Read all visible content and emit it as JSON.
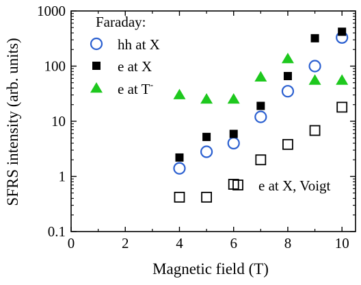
{
  "chart_data": {
    "type": "scatter",
    "xlabel": "Magnetic field (T)",
    "ylabel": "SFRS intensity (arb. units)",
    "xlim": [
      0,
      10.5
    ],
    "ylim": [
      0.1,
      1000
    ],
    "yscale": "log",
    "x_ticks": [
      0,
      2,
      4,
      6,
      8,
      10
    ],
    "x_tick_labels": [
      "0",
      "2",
      "4",
      "6",
      "8",
      "10"
    ],
    "y_ticks": [
      0.1,
      1,
      10,
      100,
      1000
    ],
    "y_tick_labels": [
      "0.1",
      "1",
      "10",
      "100",
      "1000"
    ],
    "grid": false,
    "legend": {
      "title": "Faraday:",
      "placement": "top-left"
    },
    "series": [
      {
        "name": "hh at X",
        "marker": "open-circle",
        "color": "#2a5fd0",
        "x": [
          4,
          5,
          6,
          7,
          8,
          9,
          10
        ],
        "y": [
          1.4,
          2.8,
          4.0,
          12,
          35,
          100,
          330
        ]
      },
      {
        "name": "e at X",
        "marker": "filled-square",
        "color": "#000000",
        "x": [
          4,
          5,
          6,
          7,
          8,
          9,
          10
        ],
        "y": [
          2.2,
          5.2,
          5.9,
          19,
          66,
          320,
          420
        ]
      },
      {
        "name": "e at T",
        "name_superscript": "-",
        "marker": "filled-triangle",
        "color": "#1ec81e",
        "x": [
          4,
          5,
          6,
          7,
          8,
          9,
          10
        ],
        "y": [
          30,
          25,
          25,
          63,
          135,
          55,
          55
        ]
      },
      {
        "name": "e at X, Voigt",
        "marker": "open-square",
        "color": "#000000",
        "x": [
          4,
          5,
          6,
          7,
          8,
          9,
          10
        ],
        "y": [
          0.42,
          0.42,
          0.72,
          2.0,
          3.8,
          6.8,
          18
        ]
      }
    ]
  }
}
